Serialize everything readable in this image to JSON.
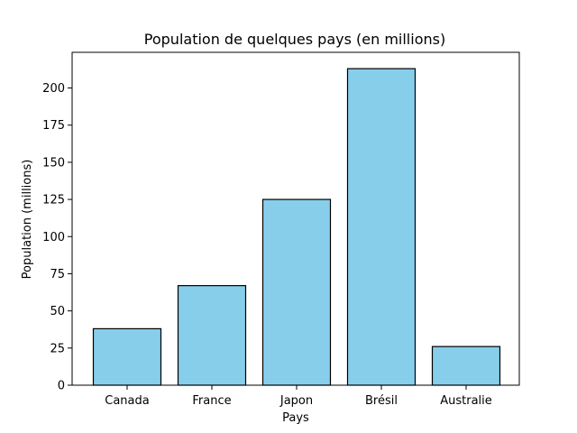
{
  "chart_data": {
    "type": "bar",
    "title": "Population de quelques pays (en millions)",
    "xlabel": "Pays",
    "ylabel": "Population (millions)",
    "categories": [
      "Canada",
      "France",
      "Japon",
      "Brésil",
      "Australie"
    ],
    "values": [
      38,
      67,
      125,
      213,
      26
    ],
    "ylim": [
      0,
      224
    ],
    "yticks": [
      0,
      25,
      50,
      75,
      100,
      125,
      150,
      175,
      200
    ],
    "grid": false,
    "bar_color": "#87CEEB",
    "edge_color": "#000000"
  }
}
